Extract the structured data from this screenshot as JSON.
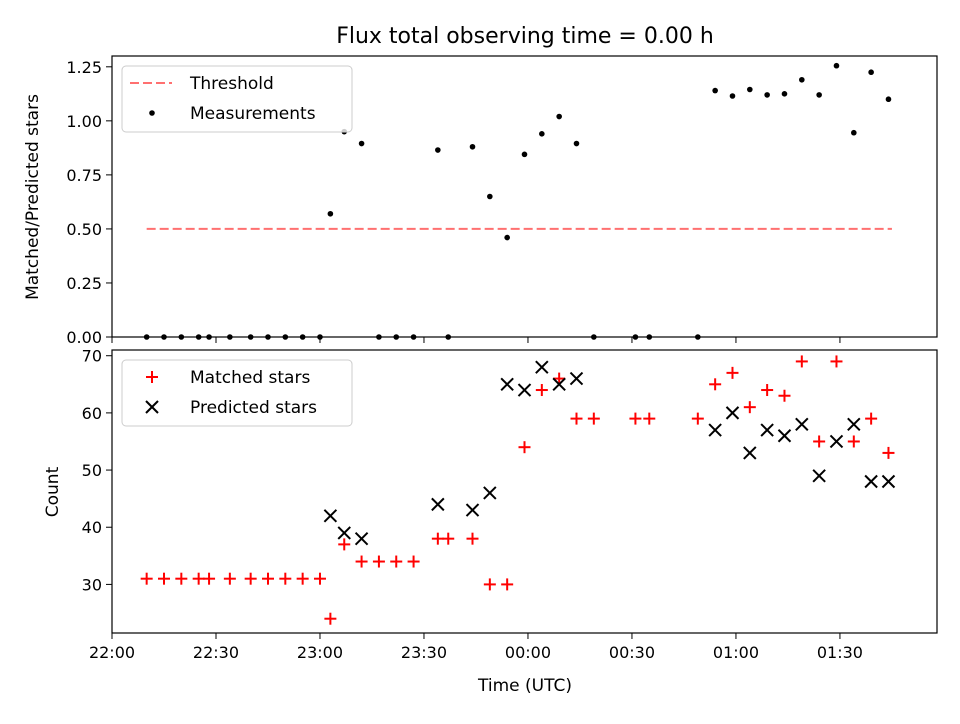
{
  "chart_data": [
    {
      "type": "scatter",
      "title": "Flux total observing time = 0.00 h",
      "xlabel": "",
      "ylabel": "Matched/Predicted stars",
      "xlim": [
        "22:00",
        "01:58"
      ],
      "ylim": [
        0,
        1.3
      ],
      "yticks": [
        "0.00",
        "0.25",
        "0.50",
        "0.75",
        "1.00",
        "1.25"
      ],
      "legend_position": "top-left",
      "threshold": {
        "name": "Threshold",
        "value": 0.5,
        "x_start": "22:10",
        "x_end": "01:45",
        "color": "#ff7070"
      },
      "series": [
        {
          "name": "Measurements",
          "color": "#000000",
          "points": [
            [
              "22:10",
              0
            ],
            [
              "22:15",
              0
            ],
            [
              "22:20",
              0
            ],
            [
              "22:25",
              0
            ],
            [
              "22:28",
              0
            ],
            [
              "22:34",
              0
            ],
            [
              "22:40",
              0
            ],
            [
              "22:45",
              0
            ],
            [
              "22:50",
              0
            ],
            [
              "22:55",
              0
            ],
            [
              "23:00",
              0
            ],
            [
              "23:03",
              0.57
            ],
            [
              "23:07",
              0.95
            ],
            [
              "23:12",
              0.895
            ],
            [
              "23:17",
              0
            ],
            [
              "23:22",
              0
            ],
            [
              "23:27",
              0
            ],
            [
              "23:34",
              0.865
            ],
            [
              "23:37",
              0
            ],
            [
              "23:44",
              0.88
            ],
            [
              "23:49",
              0.65
            ],
            [
              "23:54",
              0.46
            ],
            [
              "23:59",
              0.845
            ],
            [
              "00:04",
              0.94
            ],
            [
              "00:09",
              1.02
            ],
            [
              "00:14",
              0.895
            ],
            [
              "00:19",
              0
            ],
            [
              "00:31",
              0
            ],
            [
              "00:35",
              0
            ],
            [
              "00:49",
              0
            ],
            [
              "00:54",
              1.14
            ],
            [
              "00:59",
              1.115
            ],
            [
              "01:04",
              1.145
            ],
            [
              "01:09",
              1.12
            ],
            [
              "01:14",
              1.125
            ],
            [
              "01:19",
              1.19
            ],
            [
              "01:24",
              1.12
            ],
            [
              "01:29",
              1.255
            ],
            [
              "01:34",
              0.945
            ],
            [
              "01:39",
              1.225
            ],
            [
              "01:44",
              1.1
            ]
          ]
        }
      ]
    },
    {
      "type": "scatter",
      "title": "",
      "xlabel": "Time (UTC)",
      "ylabel": "Count",
      "xlim": [
        "22:00",
        "01:58"
      ],
      "ylim": [
        21.5,
        71
      ],
      "yticks": [
        "30",
        "40",
        "50",
        "60",
        "70"
      ],
      "xticks": [
        "22:00",
        "22:30",
        "23:00",
        "23:30",
        "00:00",
        "00:30",
        "01:00",
        "01:30"
      ],
      "legend_position": "top-left",
      "series": [
        {
          "name": "Matched stars",
          "color": "#ff0000",
          "marker": "plus",
          "points": [
            [
              "22:10",
              31
            ],
            [
              "22:15",
              31
            ],
            [
              "22:20",
              31
            ],
            [
              "22:25",
              31
            ],
            [
              "22:28",
              31
            ],
            [
              "22:34",
              31
            ],
            [
              "22:40",
              31
            ],
            [
              "22:45",
              31
            ],
            [
              "22:50",
              31
            ],
            [
              "22:55",
              31
            ],
            [
              "23:00",
              31
            ],
            [
              "23:03",
              24
            ],
            [
              "23:07",
              37
            ],
            [
              "23:12",
              34
            ],
            [
              "23:17",
              34
            ],
            [
              "23:22",
              34
            ],
            [
              "23:27",
              34
            ],
            [
              "23:34",
              38
            ],
            [
              "23:37",
              38
            ],
            [
              "23:44",
              38
            ],
            [
              "23:49",
              30
            ],
            [
              "23:54",
              30
            ],
            [
              "23:59",
              54
            ],
            [
              "00:04",
              64
            ],
            [
              "00:09",
              66
            ],
            [
              "00:14",
              59
            ],
            [
              "00:19",
              59
            ],
            [
              "00:31",
              59
            ],
            [
              "00:35",
              59
            ],
            [
              "00:49",
              59
            ],
            [
              "00:54",
              65
            ],
            [
              "00:59",
              67
            ],
            [
              "01:04",
              61
            ],
            [
              "01:09",
              64
            ],
            [
              "01:14",
              63
            ],
            [
              "01:19",
              69
            ],
            [
              "01:24",
              55
            ],
            [
              "01:29",
              69
            ],
            [
              "01:34",
              55
            ],
            [
              "01:39",
              59
            ],
            [
              "01:44",
              53
            ]
          ]
        },
        {
          "name": "Predicted stars",
          "color": "#000000",
          "marker": "x",
          "points": [
            [
              "23:03",
              42
            ],
            [
              "23:07",
              39
            ],
            [
              "23:12",
              38
            ],
            [
              "23:34",
              44
            ],
            [
              "23:44",
              43
            ],
            [
              "23:49",
              46
            ],
            [
              "23:54",
              65
            ],
            [
              "23:59",
              64
            ],
            [
              "00:04",
              68
            ],
            [
              "00:09",
              65
            ],
            [
              "00:14",
              66
            ],
            [
              "00:54",
              57
            ],
            [
              "00:59",
              60
            ],
            [
              "01:04",
              53
            ],
            [
              "01:09",
              57
            ],
            [
              "01:14",
              56
            ],
            [
              "01:19",
              58
            ],
            [
              "01:24",
              49
            ],
            [
              "01:29",
              55
            ],
            [
              "01:34",
              58
            ],
            [
              "01:39",
              48
            ],
            [
              "01:44",
              48
            ]
          ]
        }
      ]
    }
  ]
}
